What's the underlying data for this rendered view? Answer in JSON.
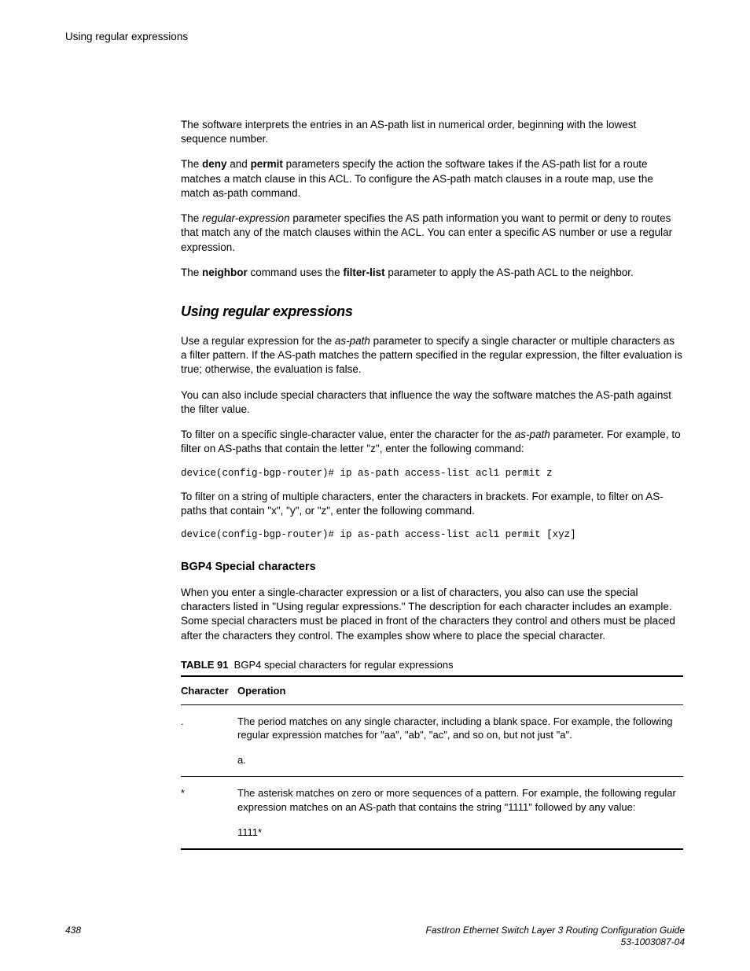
{
  "header": {
    "running": "Using regular expressions"
  },
  "body": {
    "p1": "The software interprets the entries in an AS-path list in numerical order, beginning with the lowest sequence number.",
    "p2_a": "The ",
    "p2_deny": "deny",
    "p2_b": " and ",
    "p2_permit": "permit",
    "p2_c": " parameters specify the action the software takes if the AS-path list for a route matches a match clause in this ACL. To configure the AS-path match clauses in a route map, use the match as-path command.",
    "p3_a": "The ",
    "p3_regex": "regular-expression",
    "p3_b": " parameter specifies the AS path information you want to permit or deny to routes that match any of the match clauses within the ACL. You can enter a specific AS number or use a regular expression.",
    "p4_a": "The ",
    "p4_neighbor": "neighbor",
    "p4_b": " command uses the ",
    "p4_filter": "filter-list",
    "p4_c": " parameter to apply the AS-path ACL to the neighbor.",
    "h2": "Using regular expressions",
    "p5_a": "Use a regular expression for the ",
    "p5_aspath": "as-path",
    "p5_b": " parameter to specify a single character or multiple characters as a filter pattern. If the AS-path matches the pattern specified in the regular expression, the filter evaluation is true; otherwise, the evaluation is false.",
    "p6": "You can also include special characters that influence the way the software matches the AS-path against the filter value.",
    "p7_a": "To filter on a specific single-character value, enter the character for the ",
    "p7_aspath": "as-path",
    "p7_b": " parameter. For example, to filter on AS-paths that contain the letter \"z\", enter the following command:",
    "code1": "device(config-bgp-router)# ip as-path access-list acl1 permit z",
    "p8": "To filter on a string of multiple characters, enter the characters in brackets. For example, to filter on AS-paths that contain \"x\", \"y\", or \"z\", enter the following command.",
    "code2": "device(config-bgp-router)# ip as-path access-list acl1 permit [xyz]",
    "h3": "BGP4 Special characters",
    "p9": "When you enter a single-character expression or a list of characters, you also can use the special characters listed in \"Using regular expressions.\" The description for each character includes an example. Some special characters must be placed in front of the characters they control and others must be placed after the characters they control. The examples show where to place the special character."
  },
  "table": {
    "label": "TABLE 91",
    "caption": "BGP4 special characters for regular expressions",
    "columns": [
      "Character",
      "Operation"
    ],
    "rows": [
      {
        "char": ".",
        "op": "The period matches on any single character, including a blank space. For example, the following regular expression matches for \"aa\", \"ab\", \"ac\", and so on, but not just \"a\".",
        "example": "a."
      },
      {
        "char": "*",
        "op": "The asterisk matches on zero or more sequences of a pattern. For example, the following regular expression matches on an AS-path that contains the string \"1111\" followed by any value:",
        "example": "1111*"
      }
    ]
  },
  "footer": {
    "page": "438",
    "title": "FastIron Ethernet Switch Layer 3 Routing Configuration Guide",
    "docnum": "53-1003087-04"
  }
}
